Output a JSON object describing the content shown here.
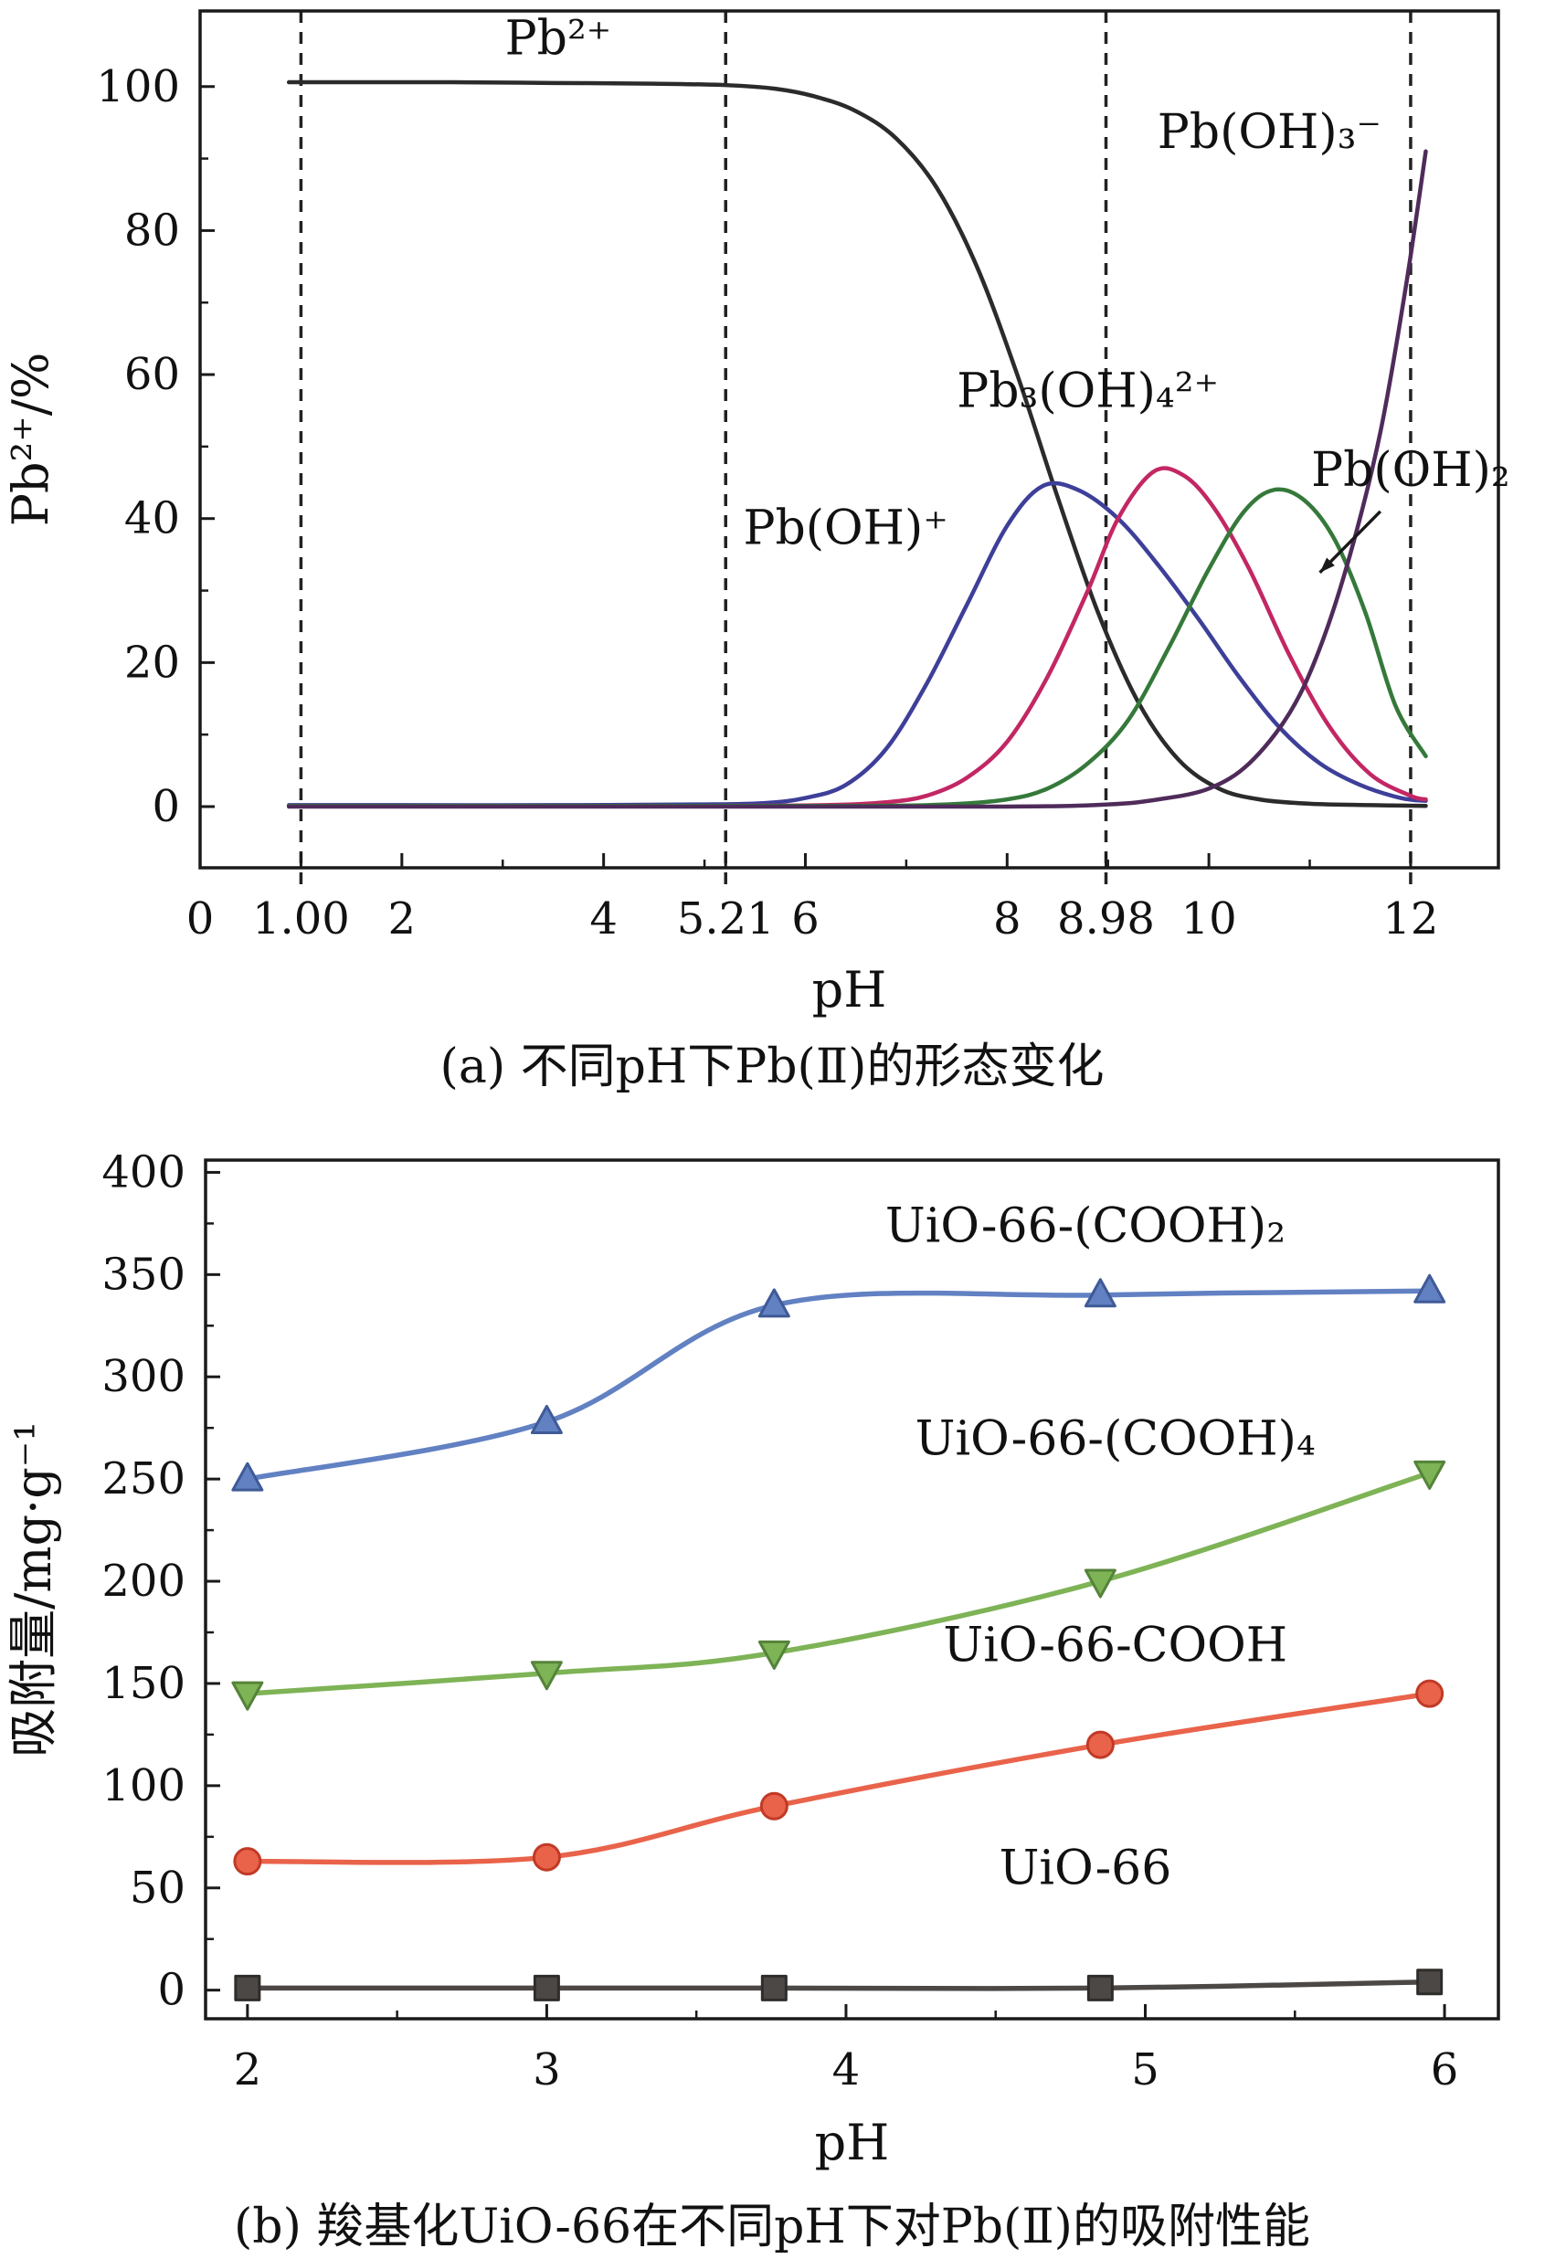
{
  "figure": {
    "background": "#ffffff",
    "text_color": "#111111",
    "axis_color": "#1a1a1a"
  },
  "chart_data": [
    {
      "id": "pb-speciation",
      "type": "line",
      "title": "",
      "caption": "(a) 不同pH下Pb(Ⅱ)的形态变化",
      "xlabel": "pH",
      "ylabel": "Pb²⁺/%",
      "xlim": [
        0,
        12.87
      ],
      "ylim": [
        -8.5,
        110.5
      ],
      "grid": false,
      "legend_position": "inline-annotations",
      "xticks": [
        {
          "v": 0,
          "label": "0"
        },
        {
          "v": 1,
          "label": "1.00"
        },
        {
          "v": 2,
          "label": "2"
        },
        {
          "v": 4,
          "label": "4"
        },
        {
          "v": 5.21,
          "label": "5.21"
        },
        {
          "v": 6,
          "label": "6"
        },
        {
          "v": 8,
          "label": "8"
        },
        {
          "v": 8.98,
          "label": "8.98"
        },
        {
          "v": 10,
          "label": "10"
        },
        {
          "v": 12,
          "label": "12"
        }
      ],
      "yticks": [
        {
          "v": 0,
          "label": "0"
        },
        {
          "v": 20,
          "label": "20"
        },
        {
          "v": 40,
          "label": "40"
        },
        {
          "v": 60,
          "label": "60"
        },
        {
          "v": 80,
          "label": "80"
        },
        {
          "v": 100,
          "label": "100"
        }
      ],
      "xminor": [
        3,
        5,
        7,
        9,
        11
      ],
      "yminor": [
        10,
        30,
        50,
        70,
        90
      ],
      "vlines": [
        1,
        5.21,
        8.98,
        12
      ],
      "series": [
        {
          "name": "Pb2+",
          "display": "Pb²⁺",
          "color": "#2b2b2b",
          "points": [
            [
              0.88,
              100.6
            ],
            [
              1.5,
              100.6
            ],
            [
              2.5,
              100.6
            ],
            [
              3.5,
              100.5
            ],
            [
              4.5,
              100.4
            ],
            [
              5.21,
              100.2
            ],
            [
              5.7,
              99.7
            ],
            [
              6.1,
              98.6
            ],
            [
              6.5,
              96.6
            ],
            [
              6.9,
              92.8
            ],
            [
              7.3,
              86
            ],
            [
              7.7,
              75
            ],
            [
              8.1,
              60
            ],
            [
              8.5,
              43
            ],
            [
              8.9,
              27
            ],
            [
              9.3,
              14.5
            ],
            [
              9.7,
              6.5
            ],
            [
              10.1,
              2.5
            ],
            [
              10.5,
              1
            ],
            [
              11,
              0.4
            ],
            [
              11.6,
              0.2
            ],
            [
              12.15,
              0.1
            ]
          ]
        },
        {
          "name": "Pb(OH)+",
          "display": "Pb(OH)⁺",
          "color": "#3d3f99",
          "points": [
            [
              0.88,
              0.2
            ],
            [
              2,
              0.2
            ],
            [
              3.5,
              0.2
            ],
            [
              5,
              0.3
            ],
            [
              5.6,
              0.5
            ],
            [
              6,
              1.2
            ],
            [
              6.4,
              3
            ],
            [
              6.8,
              8
            ],
            [
              7.2,
              17
            ],
            [
              7.6,
              28
            ],
            [
              8,
              39
            ],
            [
              8.35,
              44.5
            ],
            [
              8.7,
              44
            ],
            [
              9.1,
              40
            ],
            [
              9.5,
              33.5
            ],
            [
              9.9,
              26
            ],
            [
              10.3,
              18
            ],
            [
              10.7,
              11
            ],
            [
              11.1,
              6
            ],
            [
              11.5,
              3
            ],
            [
              11.9,
              1.2
            ],
            [
              12.15,
              0.8
            ]
          ]
        },
        {
          "name": "Pb3(OH)4-2+",
          "display": "Pb₃(OH)₄²⁺",
          "color": "#c22764",
          "points": [
            [
              0.88,
              0.1
            ],
            [
              3,
              0.1
            ],
            [
              5,
              0.1
            ],
            [
              6.2,
              0.2
            ],
            [
              6.8,
              0.6
            ],
            [
              7.2,
              1.5
            ],
            [
              7.6,
              4
            ],
            [
              8,
              9
            ],
            [
              8.4,
              18
            ],
            [
              8.8,
              30
            ],
            [
              9.1,
              40
            ],
            [
              9.45,
              46.5
            ],
            [
              9.75,
              46
            ],
            [
              10.05,
              41.5
            ],
            [
              10.4,
              33
            ],
            [
              10.8,
              21
            ],
            [
              11.2,
              11
            ],
            [
              11.6,
              4.5
            ],
            [
              12,
              1.5
            ],
            [
              12.15,
              1
            ]
          ]
        },
        {
          "name": "Pb(OH)2",
          "display": "Pb(OH)₂",
          "color": "#35793a",
          "points": [
            [
              0.88,
              0.1
            ],
            [
              4,
              0.1
            ],
            [
              6.5,
              0.1
            ],
            [
              7.4,
              0.3
            ],
            [
              8,
              1
            ],
            [
              8.4,
              2.5
            ],
            [
              8.8,
              6
            ],
            [
              9.2,
              12
            ],
            [
              9.6,
              22
            ],
            [
              10,
              33
            ],
            [
              10.35,
              41
            ],
            [
              10.65,
              44
            ],
            [
              10.95,
              42.5
            ],
            [
              11.25,
              37
            ],
            [
              11.55,
              27
            ],
            [
              11.85,
              14
            ],
            [
              12.15,
              7
            ]
          ]
        },
        {
          "name": "Pb(OH)3-",
          "display": "Pb(OH)₃⁻",
          "color": "#4f2b5a",
          "points": [
            [
              0.88,
              0
            ],
            [
              5,
              0
            ],
            [
              8,
              0
            ],
            [
              9,
              0.3
            ],
            [
              9.5,
              1
            ],
            [
              10,
              2.5
            ],
            [
              10.4,
              6
            ],
            [
              10.8,
              13
            ],
            [
              11.1,
              22
            ],
            [
              11.4,
              35
            ],
            [
              11.7,
              52
            ],
            [
              11.95,
              72
            ],
            [
              12.15,
              91
            ]
          ]
        }
      ],
      "annotations": [
        {
          "text": "Pb²⁺",
          "x": 3.55,
          "y": 104.5
        },
        {
          "text": "Pb(OH)⁺",
          "x": 6.4,
          "y": 36.5
        },
        {
          "text": "Pb₃(OH)₄²⁺",
          "x": 8.8,
          "y": 55.5
        },
        {
          "text": "Pb(OH)₃⁻",
          "x": 10.6,
          "y": 91.5
        },
        {
          "text": "Pb(OH)₂",
          "x": 12.0,
          "y": 44.5,
          "arrow": {
            "x1": 11.7,
            "y1": 41,
            "x2": 11.1,
            "y2": 32.5
          }
        }
      ]
    },
    {
      "id": "adsorption",
      "type": "line",
      "title": "",
      "caption": "(b) 羧基化UiO-66在不同pH下对Pb(Ⅱ)的吸附性能",
      "xlabel": "pH",
      "ylabel": "吸附量/mg·g⁻¹",
      "xlim": [
        1.86,
        6.18
      ],
      "ylim": [
        -14,
        406
      ],
      "grid": false,
      "legend_position": "inline-annotations",
      "xticks": [
        {
          "v": 2,
          "label": "2"
        },
        {
          "v": 3,
          "label": "3"
        },
        {
          "v": 4,
          "label": "4"
        },
        {
          "v": 5,
          "label": "5"
        },
        {
          "v": 6,
          "label": "6"
        }
      ],
      "yticks": [
        {
          "v": 0,
          "label": "0"
        },
        {
          "v": 50,
          "label": "50"
        },
        {
          "v": 100,
          "label": "100"
        },
        {
          "v": 150,
          "label": "150"
        },
        {
          "v": 200,
          "label": "200"
        },
        {
          "v": 250,
          "label": "250"
        },
        {
          "v": 300,
          "label": "300"
        },
        {
          "v": 350,
          "label": "350"
        },
        {
          "v": 400,
          "label": "400"
        }
      ],
      "xminor": [
        2.5,
        3.5,
        4.5,
        5.5
      ],
      "yminor": [
        25,
        75,
        125,
        175,
        225,
        275,
        325,
        375
      ],
      "x": [
        2,
        3,
        3.76,
        4.85,
        5.95
      ],
      "series": [
        {
          "name": "UiO-66-(COOH)2",
          "display": "UiO-66-(COOH)₂",
          "color": "#6181c2",
          "edge": "#3f5a96",
          "marker": "triangle-up",
          "values": [
            250,
            278,
            335,
            340,
            342
          ],
          "label": {
            "text": "UiO-66-(COOH)₂",
            "x": 4.8,
            "y": 366
          }
        },
        {
          "name": "UiO-66-(COOH)4",
          "display": "UiO-66-(COOH)₄",
          "color": "#7eb356",
          "edge": "#55833a",
          "marker": "triangle-down",
          "values": [
            145,
            155,
            165,
            200,
            253
          ],
          "label": {
            "text": "UiO-66-(COOH)₄",
            "x": 4.9,
            "y": 262
          }
        },
        {
          "name": "UiO-66-COOH",
          "display": "UiO-66-COOH",
          "color": "#e9634b",
          "edge": "#c13a26",
          "marker": "circle",
          "values": [
            63,
            65,
            90,
            120,
            145
          ],
          "label": {
            "text": "UiO-66-COOH",
            "x": 4.9,
            "y": 161
          }
        },
        {
          "name": "UiO-66",
          "display": "UiO-66",
          "color": "#4c4845",
          "edge": "#2f2d2b",
          "marker": "square",
          "values": [
            1,
            1,
            1,
            1,
            4
          ],
          "label": {
            "text": "UiO-66",
            "x": 4.8,
            "y": 52
          }
        }
      ]
    }
  ]
}
